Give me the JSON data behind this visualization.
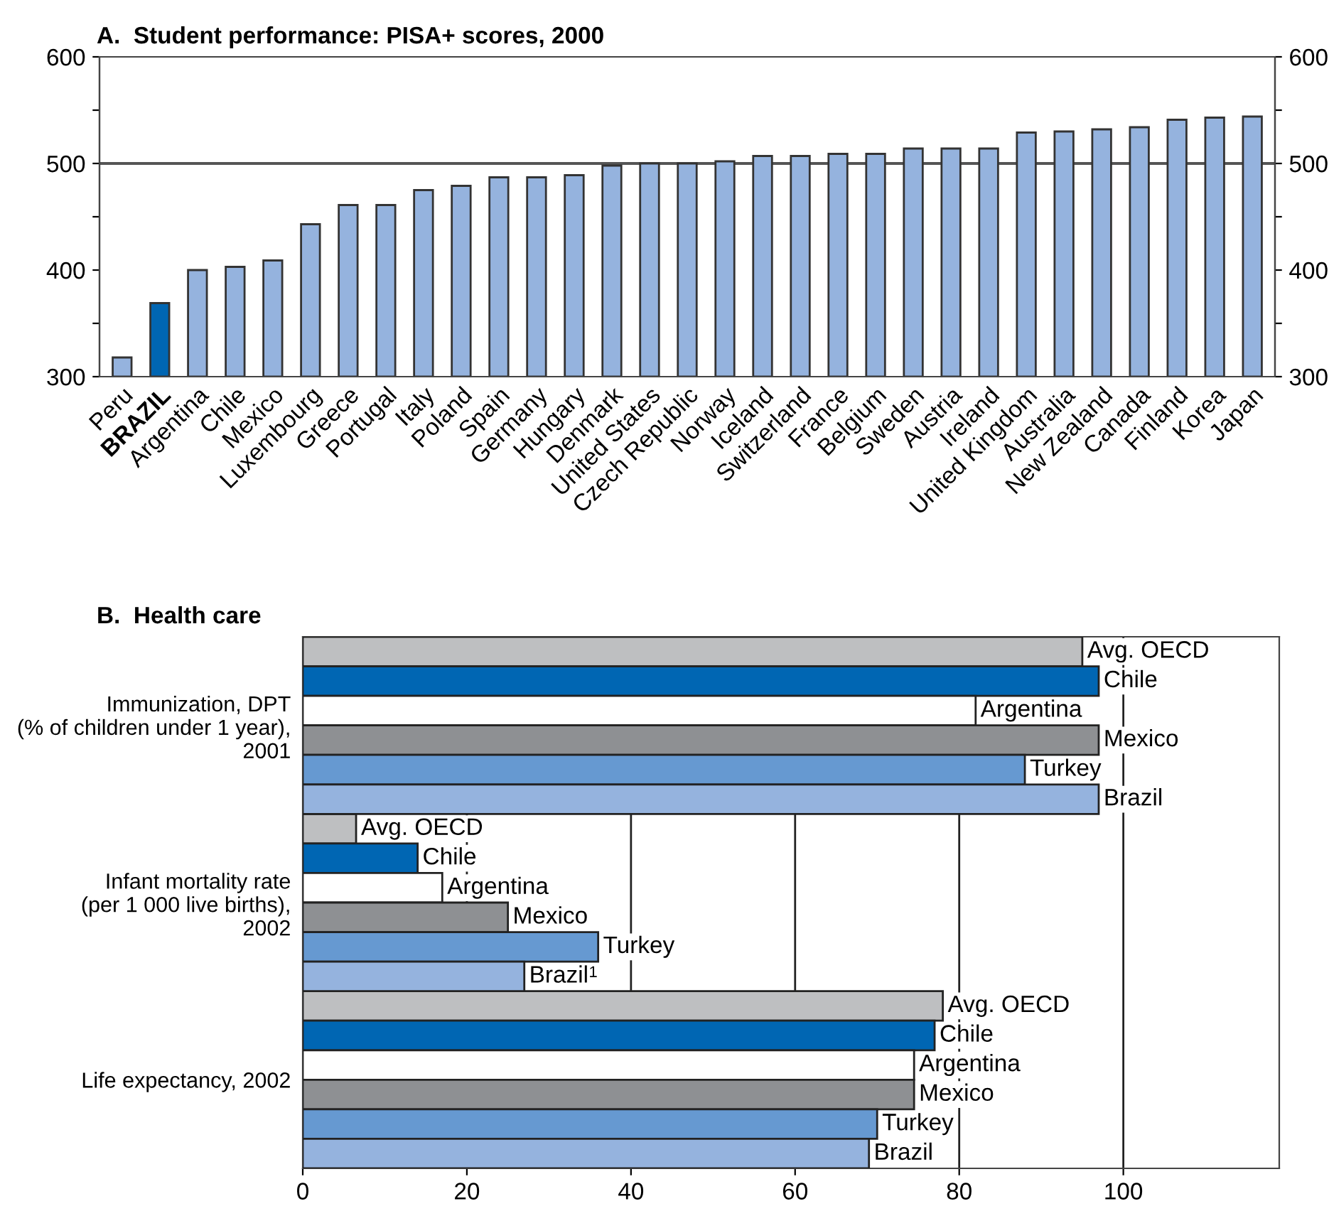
{
  "chart_data": [
    {
      "type": "bar",
      "title": "A.  Student performance: PISA+ scores, 2000",
      "categories": [
        "Peru",
        "BRAZIL",
        "Argentina",
        "Chile",
        "Mexico",
        "Luxembourg",
        "Greece",
        "Portugal",
        "Italy",
        "Poland",
        "Spain",
        "Germany",
        "Hungary",
        "Denmark",
        "United States",
        "Czech Republic",
        "Norway",
        "Iceland",
        "Switzerland",
        "France",
        "Belgium",
        "Sweden",
        "Austria",
        "Ireland",
        "United Kingdom",
        "Australia",
        "New Zealand",
        "Canada",
        "Finland",
        "Korea",
        "Japan"
      ],
      "values": [
        318,
        369,
        400,
        403,
        409,
        443,
        461,
        461,
        475,
        479,
        487,
        487,
        489,
        498,
        500,
        500,
        502,
        507,
        507,
        509,
        509,
        514,
        514,
        514,
        529,
        530,
        532,
        534,
        541,
        543,
        544
      ],
      "colors": [
        "#95b3de",
        "#0066b3",
        "#95b3de",
        "#95b3de",
        "#95b3de",
        "#95b3de",
        "#95b3de",
        "#95b3de",
        "#95b3de",
        "#95b3de",
        "#95b3de",
        "#95b3de",
        "#95b3de",
        "#95b3de",
        "#95b3de",
        "#95b3de",
        "#95b3de",
        "#95b3de",
        "#95b3de",
        "#95b3de",
        "#95b3de",
        "#95b3de",
        "#95b3de",
        "#95b3de",
        "#95b3de",
        "#95b3de",
        "#95b3de",
        "#95b3de",
        "#95b3de",
        "#95b3de",
        "#95b3de"
      ],
      "ylim": [
        300,
        600
      ],
      "yticks": [
        300,
        {
          "value": 350,
          "label": null
        },
        400,
        {
          "value": 450,
          "label": null
        },
        500,
        {
          "value": 550,
          "label": null
        },
        600
      ],
      "y2lim": [
        300,
        600
      ],
      "y2ticks": [
        300,
        {
          "value": 350,
          "label": null
        },
        400,
        {
          "value": 450,
          "label": null
        },
        500,
        {
          "value": 550,
          "label": null
        },
        600
      ],
      "ref_lines": [
        {
          "axis": "y",
          "value": 500,
          "color": "#555555"
        }
      ],
      "grid": false,
      "legend": false
    },
    {
      "type": "bar",
      "orientation": "horizontal",
      "title": "B.  Health care",
      "categories": [
        "Immunization, DPT\n(% of children under 1 year),\n2001",
        "Infant mortality rate\n(per 1 000 live births),\n2002",
        "Life expectancy, 2002"
      ],
      "series": [
        {
          "name": "Avg. OECD",
          "color": "#bebfc1",
          "values": [
            95,
            6.5,
            78
          ]
        },
        {
          "name": "Chile",
          "color": "#0066b3",
          "values": [
            97,
            14,
            77
          ]
        },
        {
          "name": "Argentina",
          "color": "#ffffff",
          "values": [
            82,
            17,
            74.5
          ]
        },
        {
          "name": "Mexico",
          "color": "#8e9093",
          "values": [
            97,
            25,
            74.5
          ]
        },
        {
          "name": "Turkey",
          "color": "#6699d1",
          "values": [
            88,
            36,
            70
          ]
        },
        {
          "name": "Brazil",
          "color": "#95b3de",
          "values": [
            97,
            27,
            69
          ]
        }
      ],
      "annotations": [
        "1"
      ],
      "xlim": [
        0,
        119
      ],
      "xticks": [
        0,
        20,
        40,
        60,
        80,
        100
      ],
      "grid": "x",
      "legend": false
    }
  ]
}
